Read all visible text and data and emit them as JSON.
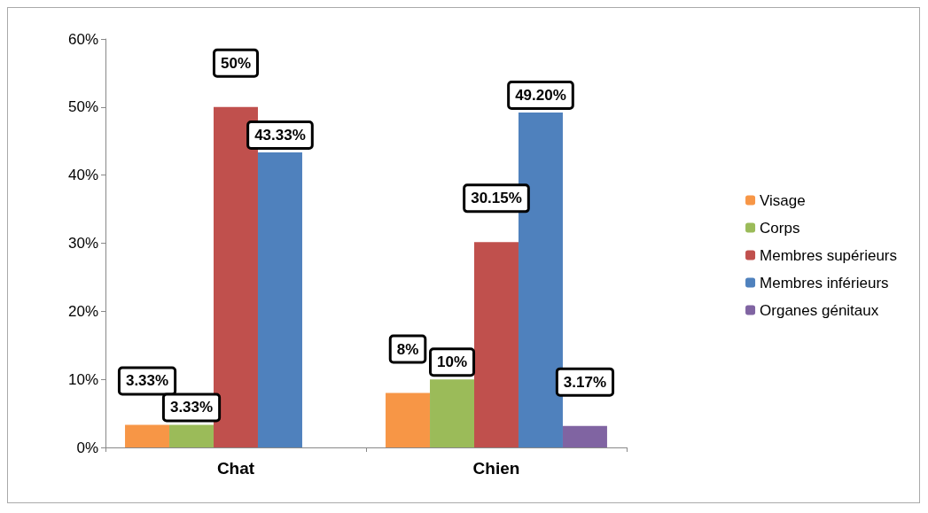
{
  "chart_data": {
    "type": "bar",
    "categories": [
      "Chat",
      "Chien"
    ],
    "series": [
      {
        "name": "Visage",
        "color": "#f79646",
        "values": [
          3.33,
          8
        ],
        "value_labels": [
          "3.33%",
          "8%"
        ]
      },
      {
        "name": "Corps",
        "color": "#9bbb59",
        "values": [
          3.33,
          10
        ],
        "value_labels": [
          "3.33%",
          "10%"
        ]
      },
      {
        "name": "Membres supérieurs",
        "color": "#c0504d",
        "values": [
          50,
          30.15
        ],
        "value_labels": [
          "50%",
          "30.15%"
        ]
      },
      {
        "name": "Membres inférieurs",
        "color": "#4f81bd",
        "values": [
          43.33,
          49.2
        ],
        "value_labels": [
          "43.33%",
          "49.20%"
        ]
      },
      {
        "name": "Organes génitaux",
        "color": "#8064a2",
        "values": [
          null,
          3.17
        ],
        "value_labels": [
          null,
          "3.17%"
        ]
      }
    ],
    "ylim": [
      0,
      60
    ],
    "yticks": [
      {
        "value": 0,
        "label": "0%"
      },
      {
        "value": 10,
        "label": "10%"
      },
      {
        "value": 20,
        "label": "20%"
      },
      {
        "value": 30,
        "label": "30%"
      },
      {
        "value": 40,
        "label": "40%"
      },
      {
        "value": 50,
        "label": "50%"
      },
      {
        "value": 60,
        "label": "60%"
      }
    ],
    "grid": false,
    "legend": "right"
  }
}
